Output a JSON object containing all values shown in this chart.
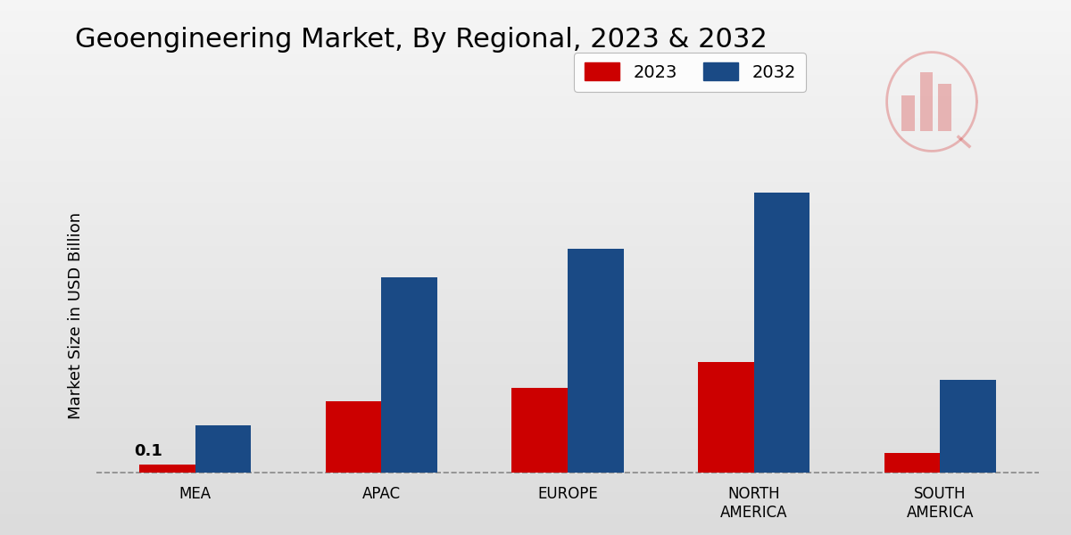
{
  "title": "Geoengineering Market, By Regional, 2023 & 2032",
  "ylabel": "Market Size in USD Billion",
  "categories": [
    "MEA",
    "APAC",
    "EUROPE",
    "NORTH\nAMERICA",
    "SOUTH\nAMERICA"
  ],
  "values_2023": [
    0.05,
    0.42,
    0.5,
    0.65,
    0.12
  ],
  "values_2032": [
    0.28,
    1.15,
    1.32,
    1.65,
    0.55
  ],
  "color_2023": "#cc0000",
  "color_2032": "#1a4a85",
  "annotation_text": "0.1",
  "background_top": "#f5f5f5",
  "background_bottom": "#d8d8d8",
  "title_fontsize": 22,
  "label_fontsize": 13,
  "tick_fontsize": 12,
  "legend_fontsize": 14,
  "bar_width": 0.3,
  "ylim": [
    -0.05,
    1.9
  ],
  "dashed_line_y": 0.0,
  "red_bar_color": "#cc0000"
}
